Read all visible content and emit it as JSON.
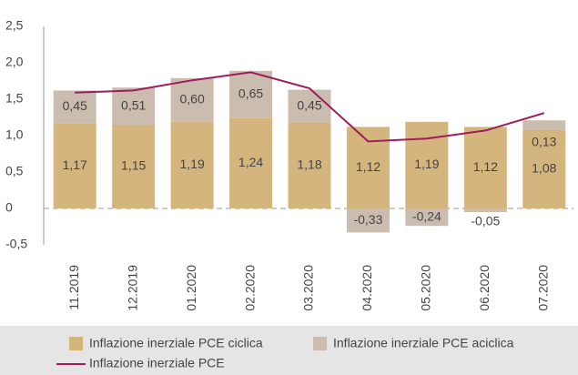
{
  "chart_data": {
    "type": "bar",
    "categories": [
      "11.2019",
      "12.2019",
      "01.2020",
      "02.2020",
      "03.2020",
      "04.2020",
      "05.2020",
      "06.2020",
      "07.2020"
    ],
    "series": [
      {
        "name": "Inflazione inerziale PCE ciclica",
        "type": "bar",
        "color": "#d5b57e",
        "values": [
          1.17,
          1.15,
          1.19,
          1.24,
          1.18,
          1.12,
          1.19,
          1.12,
          1.08
        ],
        "value_labels": [
          "1,17",
          "1,15",
          "1,19",
          "1,24",
          "1,18",
          "1,12",
          "1,19",
          "1,12",
          "1,08"
        ]
      },
      {
        "name": "Inflazione inerziale PCE aciclica",
        "type": "bar",
        "color": "#cbbcb0",
        "values": [
          0.45,
          0.51,
          0.6,
          0.65,
          0.45,
          -0.33,
          -0.24,
          -0.05,
          0.13
        ],
        "value_labels": [
          "0,45",
          "0,51",
          "0,60",
          "0,65",
          "0,45",
          "-0,33",
          "-0,24",
          "-0,05",
          "0,13"
        ]
      },
      {
        "name": "Inflazione inerziale PCE",
        "type": "line",
        "color": "#9c1c5c",
        "values": [
          1.59,
          1.62,
          1.76,
          1.87,
          1.65,
          0.92,
          0.96,
          1.07,
          1.31
        ]
      }
    ],
    "ylim": [
      -0.5,
      2.5
    ],
    "yticks": [
      {
        "value": -0.5,
        "label": "-0,5"
      },
      0,
      {
        "value": 0.5,
        "label": "0,5"
      },
      {
        "value": 1.0,
        "label": "1,0"
      },
      {
        "value": 1.5,
        "label": "1,5"
      },
      {
        "value": 2.0,
        "label": "2,0"
      },
      {
        "value": 2.5,
        "label": "2,5"
      }
    ]
  }
}
